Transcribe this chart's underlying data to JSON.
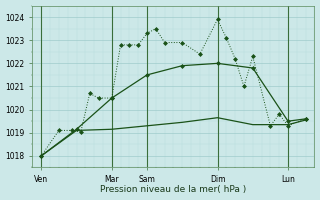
{
  "xlabel": "Pression niveau de la mer( hPa )",
  "bg_color": "#cce8e8",
  "grid_color_minor": "#b8dede",
  "grid_color_major": "#a0cccc",
  "line_color": "#1a5218",
  "ylim": [
    1017.5,
    1024.5
  ],
  "yticks": [
    1018,
    1019,
    1020,
    1021,
    1022,
    1023,
    1024
  ],
  "xlim": [
    0,
    32
  ],
  "day_labels": [
    "Ven",
    "Mar",
    "Sam",
    "Dim",
    "Lun"
  ],
  "day_positions": [
    1,
    9,
    13,
    21,
    29
  ],
  "series1_x": [
    1,
    3,
    4.5,
    5.5,
    6.5,
    7.5,
    9,
    10,
    11,
    12,
    13,
    14,
    15,
    17,
    19,
    21,
    22,
    23,
    24,
    25,
    27,
    28,
    29,
    31
  ],
  "series1_y": [
    1018.0,
    1019.1,
    1019.1,
    1019.05,
    1020.7,
    1020.5,
    1020.5,
    1022.8,
    1022.8,
    1022.8,
    1023.3,
    1023.5,
    1022.9,
    1022.9,
    1022.4,
    1023.9,
    1023.1,
    1022.2,
    1021.0,
    1022.3,
    1019.3,
    1019.8,
    1019.3,
    1019.6
  ],
  "series2_x": [
    1,
    5,
    9,
    13,
    17,
    21,
    25,
    29,
    31
  ],
  "series2_y": [
    1018.0,
    1019.15,
    1020.5,
    1021.5,
    1021.9,
    1022.0,
    1021.8,
    1019.5,
    1019.6
  ],
  "series3_x": [
    1,
    5,
    9,
    13,
    17,
    21,
    25,
    27,
    29,
    31
  ],
  "series3_y": [
    1018.0,
    1019.1,
    1019.15,
    1019.3,
    1019.45,
    1019.65,
    1019.35,
    1019.35,
    1019.35,
    1019.55
  ]
}
